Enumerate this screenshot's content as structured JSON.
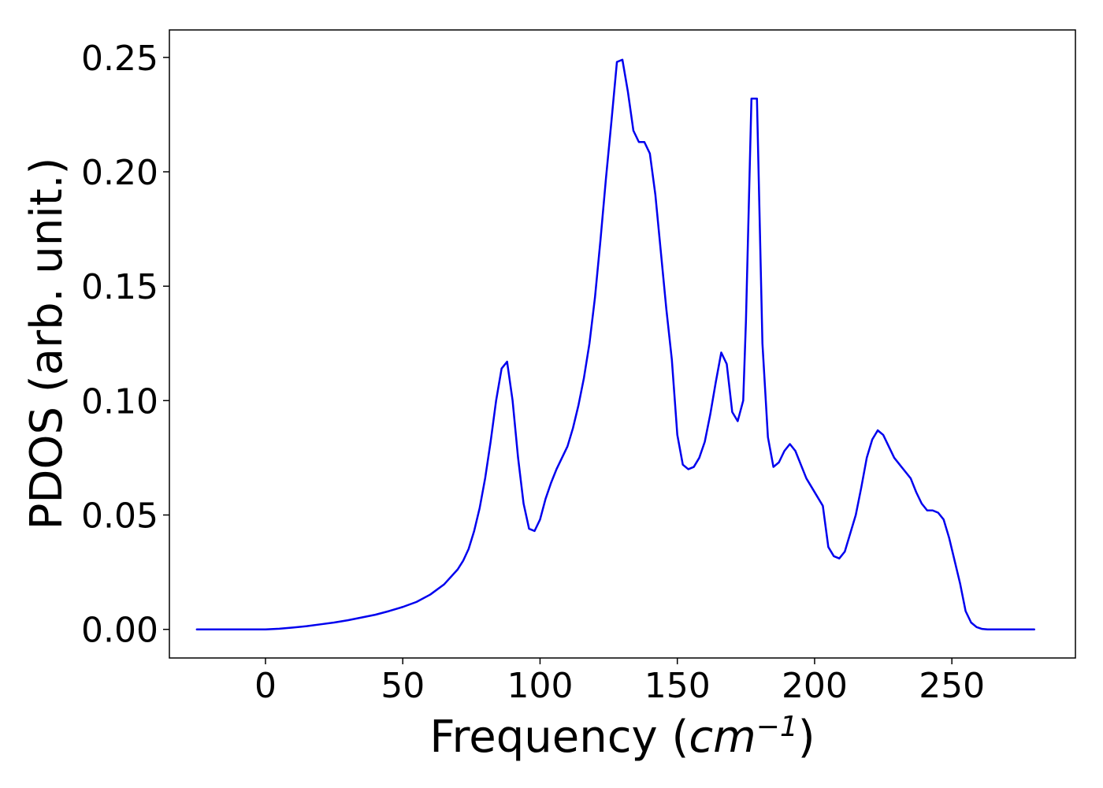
{
  "chart_data": {
    "type": "line",
    "title": "",
    "xlabel": {
      "prefix": "Frequency (",
      "unit_base": "cm",
      "unit_exponent": "−1",
      "suffix": ")"
    },
    "ylabel": "PDOS (arb. unit.)",
    "xlim": [
      -35,
      295
    ],
    "ylim": [
      -0.0125,
      0.262
    ],
    "xticks": [
      {
        "value": 0,
        "label": "0"
      },
      {
        "value": 50,
        "label": "50"
      },
      {
        "value": 100,
        "label": "100"
      },
      {
        "value": 150,
        "label": "150"
      },
      {
        "value": 200,
        "label": "200"
      },
      {
        "value": 250,
        "label": "250"
      }
    ],
    "yticks": [
      {
        "value": 0.0,
        "label": "0.00"
      },
      {
        "value": 0.05,
        "label": "0.05"
      },
      {
        "value": 0.1,
        "label": "0.10"
      },
      {
        "value": 0.15,
        "label": "0.15"
      },
      {
        "value": 0.2,
        "label": "0.20"
      },
      {
        "value": 0.25,
        "label": "0.25"
      }
    ],
    "grid": false,
    "series": [
      {
        "color": "#0000ee",
        "x": [
          -25,
          0,
          5,
          10,
          15,
          20,
          25,
          30,
          35,
          40,
          45,
          50,
          55,
          60,
          65,
          70,
          72,
          74,
          76,
          78,
          80,
          82,
          84,
          86,
          88,
          90,
          92,
          94,
          96,
          98,
          100,
          102,
          104,
          106,
          108,
          110,
          112,
          114,
          116,
          118,
          120,
          122,
          124,
          126,
          128,
          130,
          132,
          134,
          136,
          138,
          140,
          142,
          144,
          146,
          148,
          150,
          152,
          154,
          156,
          158,
          160,
          162,
          164,
          166,
          168,
          170,
          172,
          174,
          175,
          177,
          179,
          181,
          183,
          185,
          187,
          189,
          191,
          193,
          195,
          197,
          199,
          201,
          203,
          205,
          207,
          209,
          211,
          213,
          215,
          217,
          219,
          221,
          223,
          225,
          227,
          229,
          231,
          233,
          235,
          237,
          239,
          241,
          243,
          245,
          247,
          249,
          251,
          253,
          255,
          257,
          259,
          261,
          263,
          270,
          280
        ],
        "y": [
          0.0,
          0.0,
          0.0003,
          0.0008,
          0.0014,
          0.0022,
          0.003,
          0.004,
          0.0052,
          0.0064,
          0.008,
          0.0098,
          0.012,
          0.0152,
          0.0196,
          0.0262,
          0.03,
          0.0352,
          0.043,
          0.053,
          0.066,
          0.082,
          0.1,
          0.114,
          0.117,
          0.1,
          0.075,
          0.055,
          0.044,
          0.043,
          0.048,
          0.057,
          0.064,
          0.07,
          0.075,
          0.08,
          0.088,
          0.098,
          0.11,
          0.125,
          0.145,
          0.17,
          0.197,
          0.222,
          0.248,
          0.249,
          0.235,
          0.218,
          0.213,
          0.213,
          0.208,
          0.19,
          0.165,
          0.14,
          0.118,
          0.085,
          0.072,
          0.07,
          0.071,
          0.075,
          0.082,
          0.094,
          0.108,
          0.121,
          0.116,
          0.095,
          0.091,
          0.1,
          0.135,
          0.232,
          0.232,
          0.125,
          0.084,
          0.071,
          0.073,
          0.078,
          0.081,
          0.078,
          0.072,
          0.066,
          0.062,
          0.058,
          0.054,
          0.036,
          0.032,
          0.031,
          0.034,
          0.042,
          0.05,
          0.062,
          0.075,
          0.083,
          0.087,
          0.085,
          0.08,
          0.075,
          0.072,
          0.069,
          0.066,
          0.06,
          0.055,
          0.052,
          0.052,
          0.051,
          0.048,
          0.04,
          0.03,
          0.02,
          0.008,
          0.003,
          0.001,
          0.0002,
          0.0,
          0.0,
          0.0
        ]
      }
    ]
  }
}
